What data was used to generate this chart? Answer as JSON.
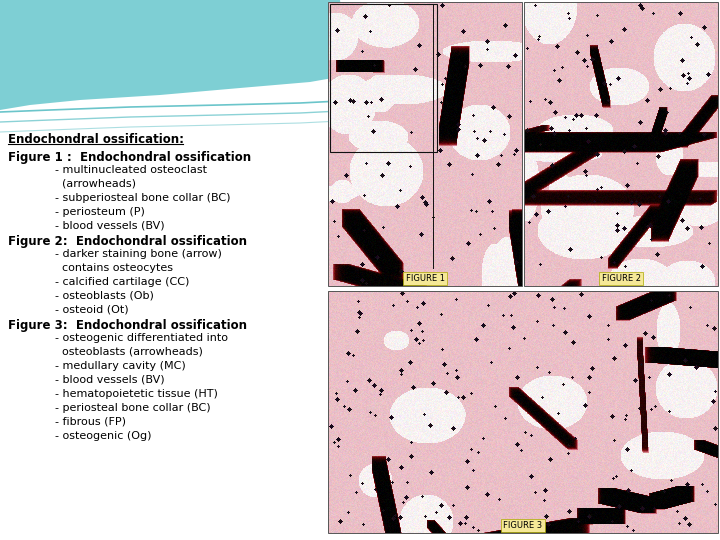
{
  "background_color": "#ffffff",
  "title": "Endochondral ossification:",
  "title_fontsize": 8.5,
  "text_lines": [
    {
      "indent": 0,
      "text": "Figure 1 :  Endochondral ossification",
      "bold": true,
      "fontsize": 8.5
    },
    {
      "indent": 1,
      "text": "- multinucleated osteoclast",
      "bold": false,
      "fontsize": 8.0
    },
    {
      "indent": 2,
      "text": "(arrowheads)",
      "bold": false,
      "fontsize": 8.0
    },
    {
      "indent": 1,
      "text": "- subperiosteal bone collar (BC)",
      "bold": false,
      "fontsize": 8.0
    },
    {
      "indent": 1,
      "text": "- periosteum (P)",
      "bold": false,
      "fontsize": 8.0
    },
    {
      "indent": 1,
      "text": "- blood vessels (BV)",
      "bold": false,
      "fontsize": 8.0
    },
    {
      "indent": 0,
      "text": "Figure 2:  Endochondral ossification",
      "bold": true,
      "fontsize": 8.5
    },
    {
      "indent": 1,
      "text": "- darker staining bone (arrow)",
      "bold": false,
      "fontsize": 8.0
    },
    {
      "indent": 2,
      "text": "contains osteocytes",
      "bold": false,
      "fontsize": 8.0
    },
    {
      "indent": 1,
      "text": "- calcified cartilage (CC)",
      "bold": false,
      "fontsize": 8.0
    },
    {
      "indent": 1,
      "text": "- osteoblasts (Ob)",
      "bold": false,
      "fontsize": 8.0
    },
    {
      "indent": 1,
      "text": "- osteoid (Ot)",
      "bold": false,
      "fontsize": 8.0
    },
    {
      "indent": 0,
      "text": "Figure 3:  Endochondral ossification",
      "bold": true,
      "fontsize": 8.5
    },
    {
      "indent": 1,
      "text": "- osteogenic differentiated into",
      "bold": false,
      "fontsize": 8.0
    },
    {
      "indent": 2,
      "text": "osteoblasts (arrowheads)",
      "bold": false,
      "fontsize": 8.0
    },
    {
      "indent": 1,
      "text": "- medullary cavity (MC)",
      "bold": false,
      "fontsize": 8.0
    },
    {
      "indent": 1,
      "text": "- blood vessels (BV)",
      "bold": false,
      "fontsize": 8.0
    },
    {
      "indent": 1,
      "text": "- hematopoietetic tissue (HT)",
      "bold": false,
      "fontsize": 8.0
    },
    {
      "indent": 1,
      "text": "- periosteal bone collar (BC)",
      "bold": false,
      "fontsize": 8.0
    },
    {
      "indent": 1,
      "text": "- fibrous (FP)",
      "bold": false,
      "fontsize": 8.0
    },
    {
      "indent": 1,
      "text": "- osteogenic (Og)",
      "bold": false,
      "fontsize": 8.0
    }
  ],
  "fig1_label": "FIGURE 1",
  "fig2_label": "FIGURE 2",
  "fig3_label": "FIGURE 3",
  "fig_label_fontsize": 6.0,
  "fig_label_bg": "#f5e897",
  "teal_color": "#7ecfd4",
  "teal_line_color": "#5bbfc5",
  "font_family": "DejaVu Sans"
}
